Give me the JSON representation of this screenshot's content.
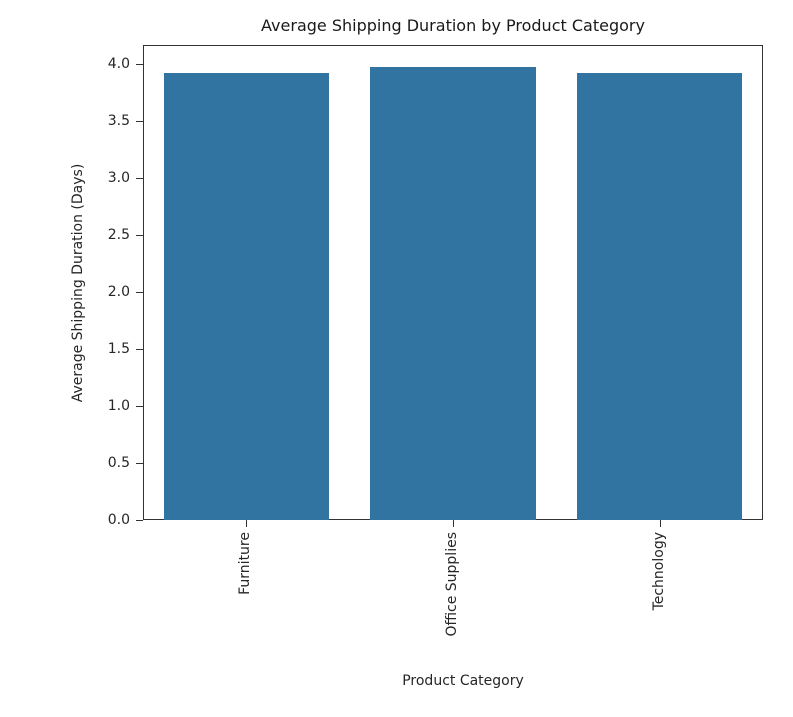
{
  "chart_data": {
    "type": "bar",
    "title": "Average Shipping Duration by Product Category",
    "xlabel": "Product Category",
    "ylabel": "Average Shipping Duration (Days)",
    "categories": [
      "Furniture",
      "Office Supplies",
      "Technology"
    ],
    "values": [
      3.92,
      3.97,
      3.92
    ],
    "ylim": [
      0,
      4.17
    ],
    "yticks": [
      "0.0",
      "0.5",
      "1.0",
      "1.5",
      "2.0",
      "2.5",
      "3.0",
      "3.5",
      "4.0"
    ],
    "grid": false,
    "legend": null,
    "bar_color": "#3274a1"
  }
}
